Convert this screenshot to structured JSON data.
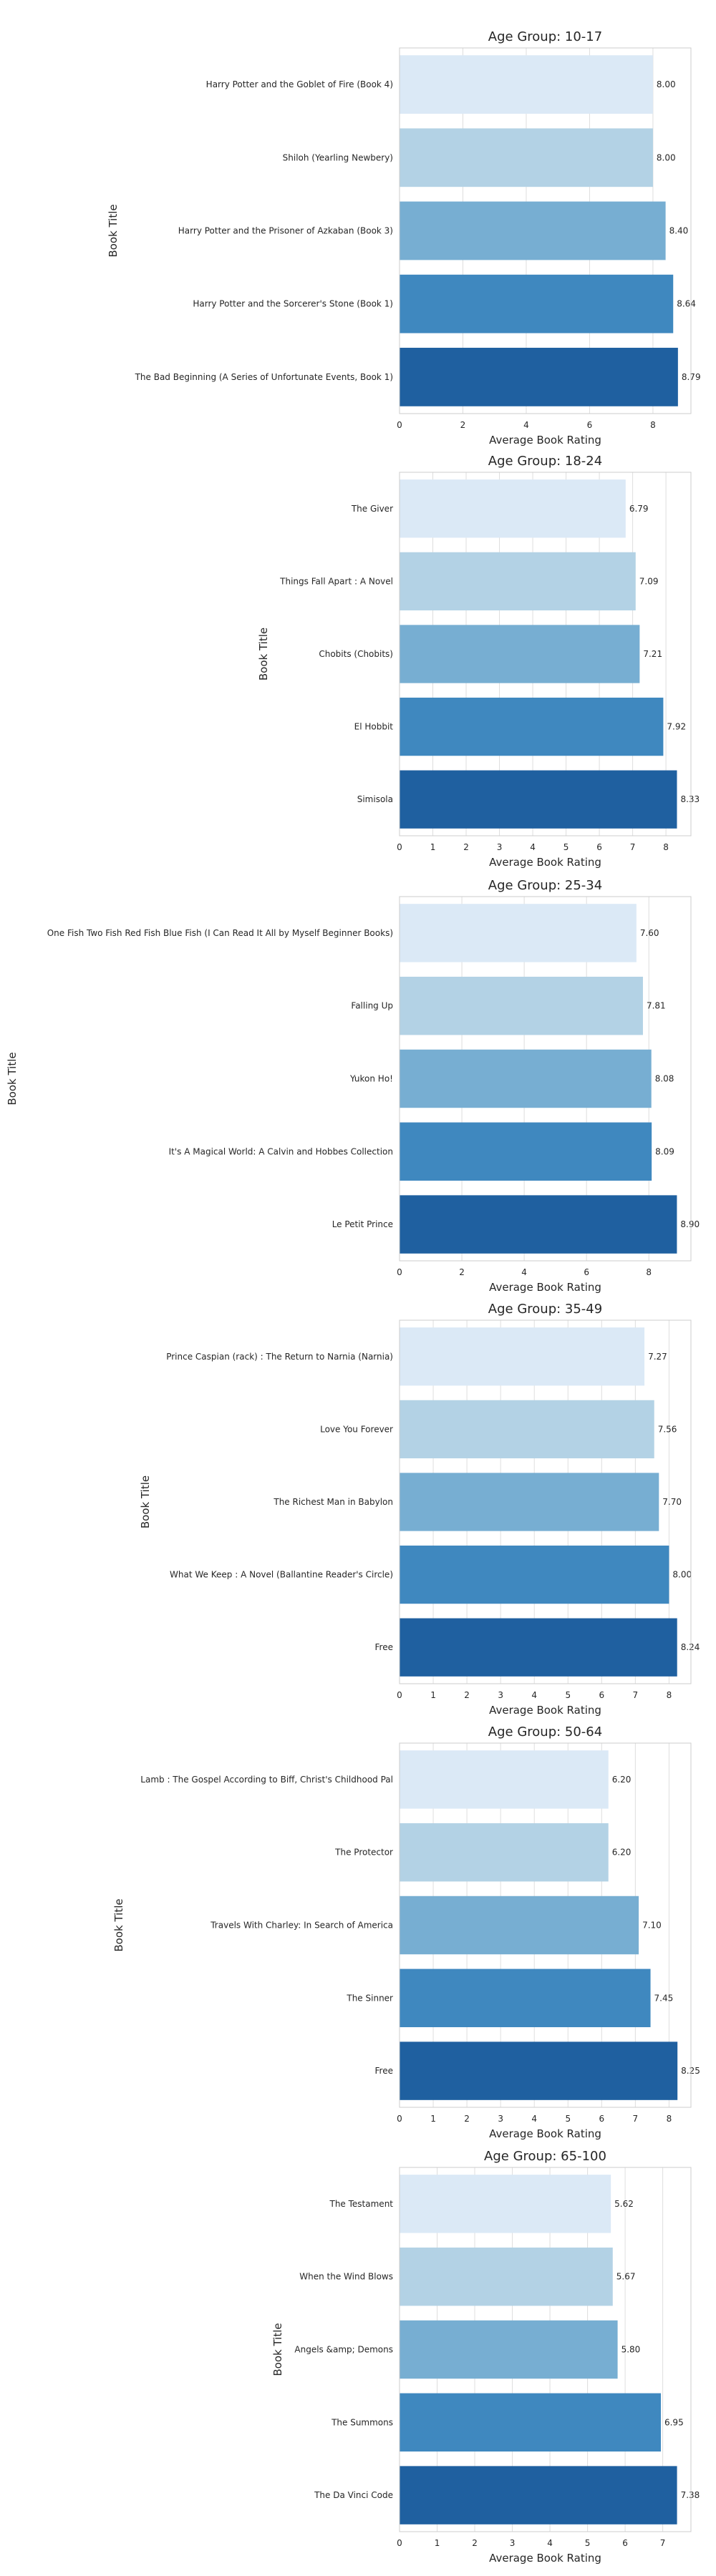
{
  "chart_data": [
    {
      "type": "bar",
      "orientation": "horizontal",
      "title": "Age Group: 10-17",
      "xlabel": "Average Book Rating",
      "ylabel": "Book Title",
      "categories": [
        "Harry Potter and the Goblet of Fire (Book 4)",
        "Shiloh (Yearling Newbery)",
        "Harry Potter and the Prisoner of Azkaban (Book 3)",
        "Harry Potter and the Sorcerer's Stone (Book 1)",
        "The Bad Beginning (A Series of Unfortunate Events, Book 1)"
      ],
      "values": [
        8.0,
        8.0,
        8.4,
        8.64,
        8.79
      ],
      "value_labels": [
        "8.00",
        "8.00",
        "8.40",
        "8.64",
        "8.79"
      ],
      "xlim": [
        0,
        9.2
      ],
      "xticks": [
        0,
        2,
        4,
        6,
        8
      ],
      "grid": true
    },
    {
      "type": "bar",
      "orientation": "horizontal",
      "title": "Age Group: 18-24",
      "xlabel": "Average Book Rating",
      "ylabel": "Book Title",
      "categories": [
        "The Giver",
        "Things Fall Apart : A Novel",
        "Chobits (Chobits)",
        "El Hobbit",
        "Simisola"
      ],
      "values": [
        6.79,
        7.09,
        7.21,
        7.92,
        8.33
      ],
      "value_labels": [
        "6.79",
        "7.09",
        "7.21",
        "7.92",
        "8.33"
      ],
      "xlim": [
        0,
        8.75
      ],
      "xticks": [
        0,
        1,
        2,
        3,
        4,
        5,
        6,
        7,
        8
      ],
      "grid": true
    },
    {
      "type": "bar",
      "orientation": "horizontal",
      "title": "Age Group: 25-34",
      "xlabel": "Average Book Rating",
      "ylabel": "Book Title",
      "categories": [
        "One Fish Two Fish Red Fish Blue Fish (I Can Read It All by Myself Beginner Books)",
        "Falling Up",
        "Yukon Ho!",
        "It's A Magical World: A Calvin and Hobbes Collection",
        "Le Petit Prince"
      ],
      "values": [
        7.6,
        7.81,
        8.08,
        8.09,
        8.9
      ],
      "value_labels": [
        "7.60",
        "7.81",
        "8.08",
        "8.09",
        "8.90"
      ],
      "xlim": [
        0,
        9.35
      ],
      "xticks": [
        0,
        2,
        4,
        6,
        8
      ],
      "grid": true
    },
    {
      "type": "bar",
      "orientation": "horizontal",
      "title": "Age Group: 35-49",
      "xlabel": "Average Book Rating",
      "ylabel": "Book Title",
      "categories": [
        "Prince Caspian (rack) : The Return to Narnia (Narnia)",
        "Love You Forever",
        "The Richest Man in Babylon",
        "What We Keep : A Novel (Ballantine Reader's Circle)",
        "Free"
      ],
      "values": [
        7.27,
        7.56,
        7.7,
        8.0,
        8.24
      ],
      "value_labels": [
        "7.27",
        "7.56",
        "7.70",
        "8.00",
        "8.24"
      ],
      "xlim": [
        0,
        8.65
      ],
      "xticks": [
        0,
        1,
        2,
        3,
        4,
        5,
        6,
        7,
        8
      ],
      "grid": true
    },
    {
      "type": "bar",
      "orientation": "horizontal",
      "title": "Age Group: 50-64",
      "xlabel": "Average Book Rating",
      "ylabel": "Book Title",
      "categories": [
        "Lamb : The Gospel According to Biff, Christ's Childhood Pal",
        "The Protector",
        "Travels With Charley: In Search of America",
        "The Sinner",
        "Free"
      ],
      "values": [
        6.2,
        6.2,
        7.1,
        7.45,
        8.25
      ],
      "value_labels": [
        "6.20",
        "6.20",
        "7.10",
        "7.45",
        "8.25"
      ],
      "xlim": [
        0,
        8.65
      ],
      "xticks": [
        0,
        1,
        2,
        3,
        4,
        5,
        6,
        7,
        8
      ],
      "grid": true
    },
    {
      "type": "bar",
      "orientation": "horizontal",
      "title": "Age Group: 65-100",
      "xlabel": "Average Book Rating",
      "ylabel": "Book Title",
      "categories": [
        "The Testament",
        "When the Wind Blows",
        "Angels &amp; Demons",
        "The Summons",
        "The Da Vinci Code"
      ],
      "values": [
        5.62,
        5.67,
        5.8,
        6.95,
        7.38
      ],
      "value_labels": [
        "5.62",
        "5.67",
        "5.80",
        "6.95",
        "7.38"
      ],
      "xlim": [
        0,
        7.75
      ],
      "xticks": [
        0,
        1,
        2,
        3,
        4,
        5,
        6,
        7
      ],
      "grid": true
    }
  ],
  "colors": {
    "bars": [
      "#dbe9f6",
      "#b3d2e5",
      "#77aed2",
      "#3f88bf",
      "#1f60a0"
    ],
    "grid": "#dedede",
    "text": "#262626"
  }
}
